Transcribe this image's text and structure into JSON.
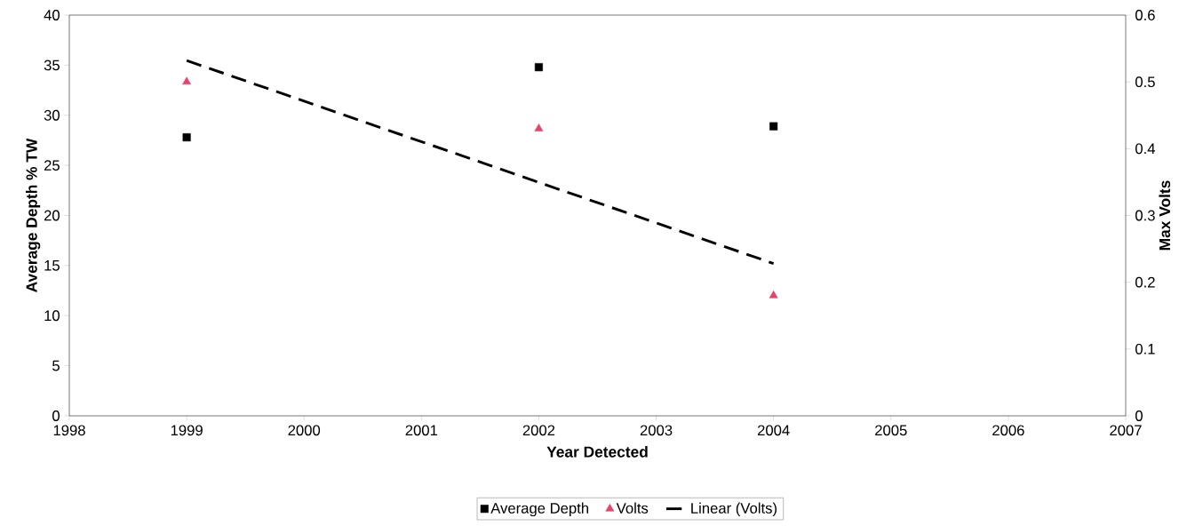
{
  "chart_data": {
    "type": "scatter",
    "xlabel": "Year Detected",
    "ylabel": "Average Depth % TW",
    "y2label": "Max Volts",
    "x": [
      1999,
      2002,
      2004
    ],
    "series": [
      {
        "name": "Average Depth",
        "color": "#000000",
        "marker": "square",
        "values": [
          27.8,
          34.8,
          28.9
        ]
      },
      {
        "name": "Volts",
        "color": "#e8436a",
        "marker": "triangle",
        "axis": "y2",
        "values": [
          0.5,
          0.43,
          0.18
        ]
      },
      {
        "name": "Linear (Volts)",
        "type": "line",
        "color": "#000000",
        "marker": "none",
        "line_style": "dashed",
        "axis": "y2",
        "x": [
          1999,
          2004
        ],
        "values": [
          0.532,
          0.228
        ]
      }
    ],
    "xlim": [
      1998,
      2007
    ],
    "xticks": [
      1998,
      1999,
      2000,
      2001,
      2002,
      2003,
      2004,
      2005,
      2006,
      2007
    ],
    "ylim": [
      0,
      40
    ],
    "yticks": [
      0,
      5,
      10,
      15,
      20,
      25,
      30,
      35,
      40
    ],
    "y2lim": [
      0,
      0.6
    ],
    "y2ticks": [
      0,
      0.1,
      0.2,
      0.3,
      0.4,
      0.5,
      0.6
    ],
    "legend": "bottom",
    "grid": false
  }
}
